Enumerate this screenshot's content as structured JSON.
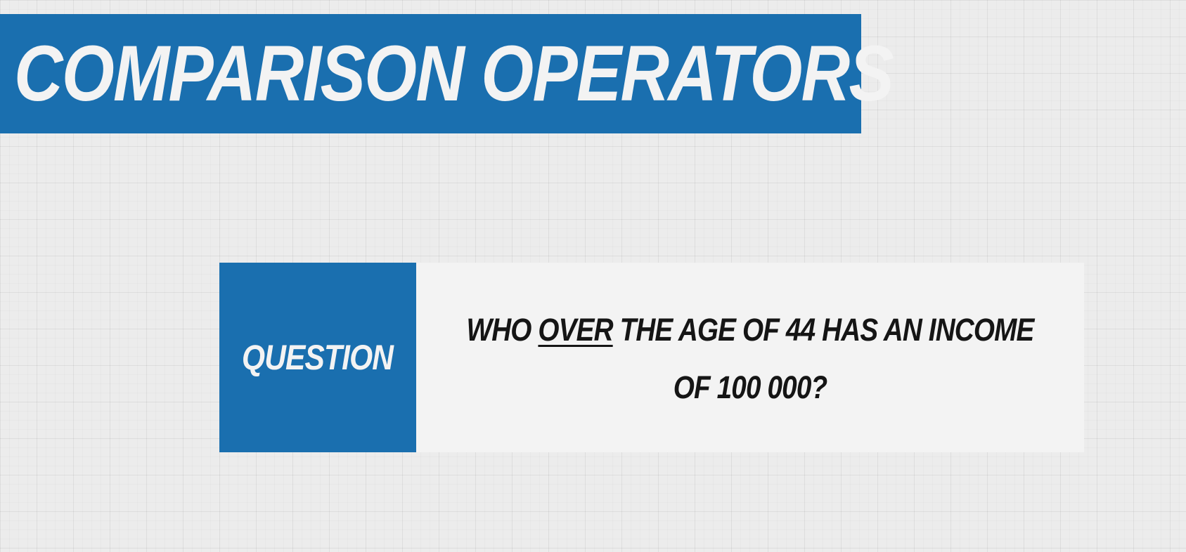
{
  "slide": {
    "title": "COMPARISON OPERATORS",
    "question_label": "QUESTION",
    "question": {
      "part1": "WHO ",
      "emphasis": "OVER",
      "part2": " THE AGE OF 44 HAS AN INCOME OF 100 000?"
    }
  },
  "colors": {
    "accent_blue": "#1a6faf",
    "light_text": "#f3f3f3",
    "dark_text": "#151515",
    "background": "#ececec"
  }
}
